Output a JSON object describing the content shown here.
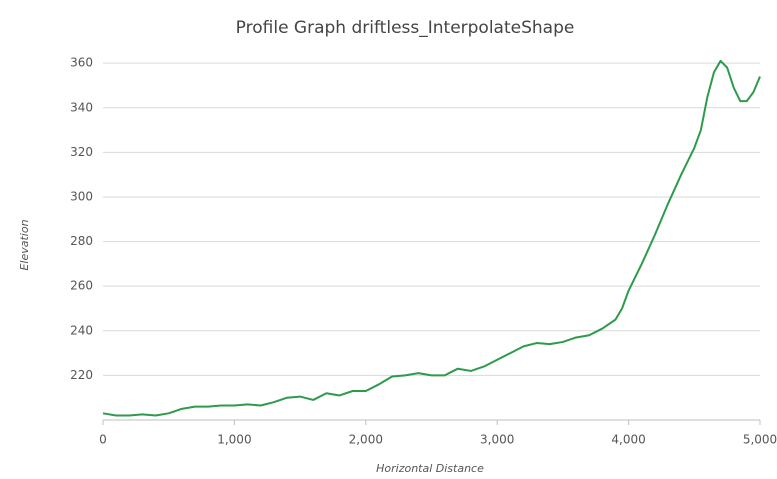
{
  "chart_data": {
    "type": "line",
    "title": "Profile Graph driftless_InterpolateShape",
    "x_label": "Horizontal Distance",
    "y_label": "Elevation",
    "x": [
      0,
      100,
      200,
      300,
      400,
      500,
      600,
      700,
      800,
      900,
      1000,
      1100,
      1200,
      1300,
      1400,
      1500,
      1600,
      1700,
      1800,
      1900,
      2000,
      2100,
      2200,
      2300,
      2400,
      2500,
      2600,
      2700,
      2800,
      2900,
      3000,
      3100,
      3200,
      3300,
      3400,
      3500,
      3600,
      3700,
      3800,
      3900,
      3950,
      4000,
      4100,
      4200,
      4300,
      4400,
      4500,
      4550,
      4600,
      4650,
      4700,
      4750,
      4800,
      4850,
      4900,
      4950,
      5000
    ],
    "series": [
      {
        "name": "Elevation",
        "color": "#2e9a4c",
        "values": [
          203,
          202,
          202,
          202.5,
          202,
          203,
          205,
          206,
          206,
          206.5,
          206.5,
          207,
          206.5,
          208,
          210,
          210.5,
          209,
          212,
          211,
          213,
          213,
          216,
          219.5,
          220,
          221,
          220,
          220,
          223,
          222,
          224,
          227,
          230,
          233,
          234.5,
          234,
          235,
          237,
          238,
          241,
          245,
          250,
          258,
          270,
          283,
          297,
          310,
          322,
          330,
          345,
          356,
          361,
          358,
          349,
          343,
          343,
          347,
          354
        ]
      }
    ],
    "xlim": [
      0,
      5000
    ],
    "xticks": [
      0,
      {
        "value": 1000,
        "label": "1,000"
      },
      {
        "value": 2000,
        "label": "2,000"
      },
      {
        "value": 3000,
        "label": "3,000"
      },
      {
        "value": 4000,
        "label": "4,000"
      },
      {
        "value": 5000,
        "label": "5,000"
      }
    ],
    "ylim": [
      200,
      365
    ],
    "yticks": [
      220,
      240,
      260,
      280,
      300,
      320,
      340,
      360
    ],
    "grid": true
  }
}
